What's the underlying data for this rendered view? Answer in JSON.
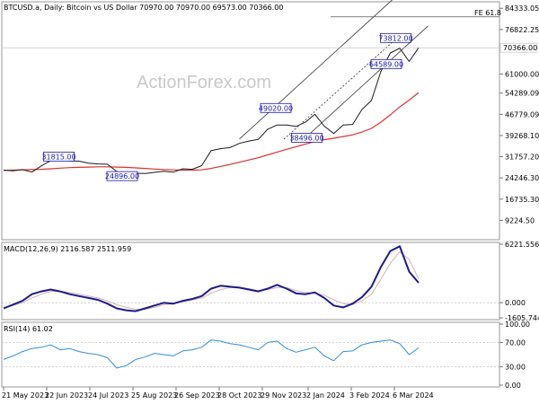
{
  "window": {
    "main_header": "BTCUSD.a, Daily:  Bitcoin vs US Dollar  70970.00 70970.00 69573.00 70366.00",
    "watermark": "ActionForex.com",
    "macd_header": "MACD(12,26,9) 2116.587 2511.959",
    "rsi_header": "RSI(14) 61.02"
  },
  "colors": {
    "price_line": "#1a1a1a",
    "ma_line": "#e03030",
    "channel_line": "#333333",
    "fib_line": "#555555",
    "macd_line": "#1c1c8c",
    "signal_line": "#d8b0b0",
    "rsi_line": "#2e8fdc",
    "label_box": "#1a1aa8",
    "grid": "#c8c8c8"
  },
  "chart_data": [
    {
      "type": "line",
      "panel": "price",
      "title": "BTCUSD.a, Daily:  Bitcoin vs US Dollar",
      "x": [
        "2023-05-21",
        "2023-05-28",
        "2023-06-04",
        "2023-06-11",
        "2023-06-18",
        "2023-06-25",
        "2023-07-02",
        "2023-07-09",
        "2023-07-16",
        "2023-07-23",
        "2023-07-30",
        "2023-08-06",
        "2023-08-13",
        "2023-08-20",
        "2023-08-27",
        "2023-09-03",
        "2023-09-10",
        "2023-09-17",
        "2023-09-24",
        "2023-10-01",
        "2023-10-08",
        "2023-10-15",
        "2023-10-22",
        "2023-10-29",
        "2023-11-05",
        "2023-11-12",
        "2023-11-19",
        "2023-11-26",
        "2023-12-03",
        "2023-12-10",
        "2023-12-17",
        "2023-12-24",
        "2023-12-31",
        "2024-01-07",
        "2024-01-14",
        "2024-01-21",
        "2024-01-28",
        "2024-02-04",
        "2024-02-11",
        "2024-02-18",
        "2024-02-25",
        "2024-03-03",
        "2024-03-10",
        "2024-03-17",
        "2024-03-24"
      ],
      "yticks": [
        "84333.05",
        "76822.25",
        "70366.00",
        "61000.00",
        "54289.09",
        "46779.09",
        "39268.10",
        "31757.20",
        "24246.30",
        "16735.30",
        "9224.50"
      ],
      "ylim": [
        3000,
        86000
      ],
      "series": [
        {
          "name": "Price",
          "values": [
            27000,
            26800,
            27200,
            26300,
            28500,
            30400,
            30500,
            30300,
            30200,
            29500,
            29200,
            29100,
            26500,
            26000,
            25900,
            25800,
            26200,
            26600,
            26300,
            27500,
            27300,
            28600,
            33900,
            34600,
            35000,
            36500,
            37300,
            37900,
            41500,
            43000,
            43000,
            42500,
            44000,
            46800,
            42600,
            40000,
            43000,
            43200,
            48500,
            51700,
            62000,
            68500,
            70200,
            65500,
            70366
          ]
        },
        {
          "name": "MA",
          "values": [
            26900,
            27000,
            27100,
            27200,
            27300,
            27500,
            27700,
            27900,
            28000,
            28100,
            28200,
            28200,
            28100,
            28000,
            27800,
            27600,
            27400,
            27200,
            27100,
            27000,
            27000,
            27100,
            27600,
            28300,
            29000,
            29800,
            30600,
            31400,
            32400,
            33400,
            34400,
            35300,
            36200,
            37200,
            37800,
            38300,
            38900,
            39500,
            40500,
            41800,
            44000,
            46600,
            49400,
            51800,
            54500
          ]
        }
      ],
      "channel": {
        "lower_start": [
          "2023-12-31",
          38496
        ],
        "upper_start": [
          "2023-11-12",
          38000
        ],
        "end": "2024-03-31"
      },
      "fib_level": {
        "label": "FE 61.8",
        "value": 81300
      },
      "current_price_label": "70366.00",
      "annotations": [
        {
          "text": "31815.00",
          "x": "2023-07-01",
          "y": 31815
        },
        {
          "text": "24896.00",
          "x": "2023-08-17",
          "y": 24896
        },
        {
          "text": "49020.00",
          "x": "2023-12-09",
          "y": 49020
        },
        {
          "text": "38496.00",
          "x": "2024-01-01",
          "y": 38496
        },
        {
          "text": "73812.00",
          "x": "2024-03-07",
          "y": 73812
        },
        {
          "text": "64589.00",
          "x": "2024-02-29",
          "y": 64589
        }
      ]
    },
    {
      "type": "line",
      "panel": "macd",
      "title": "MACD(12,26,9) 2116.587 2511.959",
      "yticks": [
        "6221.556",
        "0.000",
        "-1605.744"
      ],
      "ylim": [
        -1605.744,
        6221.556
      ],
      "series": [
        {
          "name": "MACD",
          "values": [
            -600,
            -200,
            200,
            900,
            1200,
            1400,
            1200,
            900,
            700,
            500,
            300,
            -100,
            -600,
            -800,
            -900,
            -600,
            -300,
            0,
            -100,
            200,
            400,
            700,
            1500,
            1800,
            1700,
            1600,
            1400,
            1200,
            1500,
            1900,
            1500,
            1000,
            900,
            1100,
            500,
            -300,
            -500,
            -100,
            600,
            1700,
            3800,
            5500,
            6000,
            3300,
            2117
          ]
        },
        {
          "name": "Signal",
          "values": [
            -500,
            -300,
            0,
            500,
            900,
            1200,
            1200,
            1100,
            900,
            700,
            500,
            200,
            -200,
            -500,
            -700,
            -700,
            -500,
            -200,
            -100,
            100,
            300,
            500,
            1000,
            1400,
            1600,
            1600,
            1500,
            1300,
            1400,
            1600,
            1600,
            1300,
            1100,
            1000,
            800,
            300,
            -100,
            -200,
            200,
            900,
            2500,
            4200,
            5400,
            4600,
            2512
          ]
        }
      ]
    },
    {
      "type": "line",
      "panel": "rsi",
      "title": "RSI(14) 61.02",
      "yticks": [
        "100.00",
        "70.00",
        "30.00",
        "0.00"
      ],
      "ylim": [
        0,
        100
      ],
      "levels": [
        70,
        30
      ],
      "series": [
        {
          "name": "RSI",
          "values": [
            42,
            48,
            55,
            60,
            62,
            66,
            58,
            60,
            55,
            52,
            50,
            45,
            28,
            32,
            42,
            46,
            52,
            50,
            48,
            56,
            58,
            62,
            74,
            72,
            68,
            66,
            62,
            58,
            70,
            72,
            60,
            54,
            58,
            62,
            48,
            40,
            55,
            56,
            66,
            70,
            72,
            74,
            68,
            50,
            61
          ]
        }
      ]
    }
  ],
  "x_axis_labels": [
    "21 May 2023",
    "22 Jun 2023",
    "24 Jul 2023",
    "25 Aug 2023",
    "26 Sep 2023",
    "28 Oct 2023",
    "29 Nov 2023",
    "2 Jan 2024",
    "3 Feb 2024",
    "6 Mar 2024"
  ]
}
